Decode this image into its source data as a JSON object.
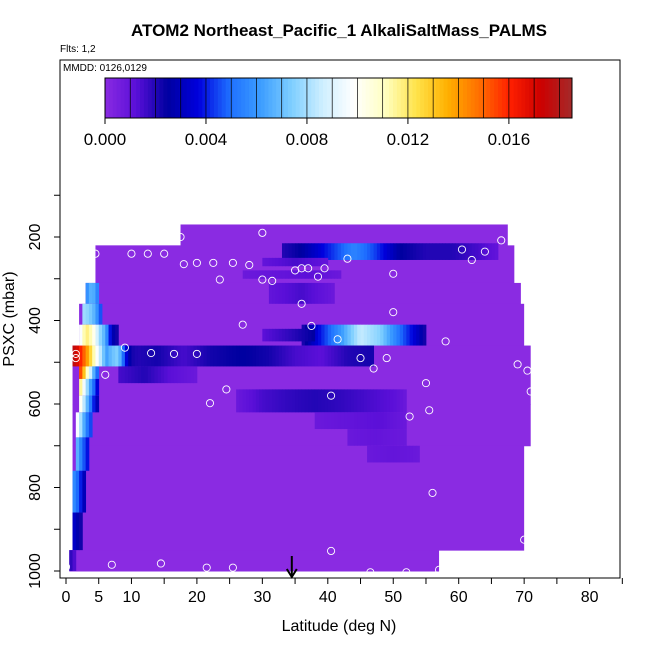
{
  "chart_data": {
    "type": "heatmap",
    "title": "ATOM2 Northeast_Pacific_1 AlkaliSaltMass_PALMS",
    "flights_label": "Flts: 1,2",
    "dates_label": "MMDD: 0126,0129",
    "xlabel": "Latitude (deg N)",
    "ylabel": "PSXC (mbar)",
    "xlim": [
      0,
      85
    ],
    "ylim": [
      1000,
      100
    ],
    "x_ticks": [
      0,
      5,
      10,
      20,
      30,
      40,
      50,
      60,
      70,
      80
    ],
    "y_ticks": [
      200,
      400,
      600,
      800,
      1000
    ],
    "marker_latitude": 34.5,
    "colorbar": {
      "min": 0.0,
      "max": 0.0185,
      "tick_values": [
        0.0,
        0.004,
        0.008,
        0.012,
        0.016
      ],
      "tick_labels": [
        "0.000",
        "0.004",
        "0.008",
        "0.012",
        "0.016"
      ],
      "colors": [
        "#8a2be2",
        "#5a0fd8",
        "#0000a0",
        "#0000dd",
        "#1e6fff",
        "#3c9dff",
        "#7fcfff",
        "#cfefff",
        "#ffffff",
        "#ffffc0",
        "#ffe34a",
        "#ffb000",
        "#ff7000",
        "#ff2000",
        "#cc0000",
        "#a52a2a"
      ]
    },
    "envelope": [
      {
        "p": [
          170,
          220
        ],
        "lat": [
          17.5,
          67.5
        ]
      },
      {
        "p": [
          220,
          310
        ],
        "lat": [
          4.5,
          68.5
        ]
      },
      {
        "p": [
          310,
          360
        ],
        "lat": [
          3.0,
          69.5
        ]
      },
      {
        "p": [
          360,
          460
        ],
        "lat": [
          2.0,
          70.0
        ]
      },
      {
        "p": [
          460,
          600
        ],
        "lat": [
          1.0,
          71.0
        ]
      },
      {
        "p": [
          600,
          700
        ],
        "lat": [
          1.0,
          71.0
        ]
      },
      {
        "p": [
          700,
          950
        ],
        "lat": [
          1.0,
          70.0
        ]
      },
      {
        "p": [
          950,
          1000
        ],
        "lat": [
          0.5,
          57.0
        ]
      }
    ],
    "features": [
      {
        "p": [
          215,
          255
        ],
        "lat": [
          33,
          66
        ],
        "values": [
          [
            33,
            0.002
          ],
          [
            36,
            0.0025
          ],
          [
            40,
            0.004
          ],
          [
            44,
            0.0055
          ],
          [
            47,
            0.0045
          ],
          [
            51,
            0.0025
          ],
          [
            55,
            0.002
          ],
          [
            59,
            0.002
          ],
          [
            63,
            0.0015
          ],
          [
            66,
            0.001
          ]
        ]
      },
      {
        "p": [
          250,
          270
        ],
        "lat": [
          30,
          40
        ],
        "values": [
          [
            30,
            0.001
          ],
          [
            35,
            0.0015
          ],
          [
            40,
            0.001
          ]
        ]
      },
      {
        "p": [
          280,
          300
        ],
        "lat": [
          27,
          42
        ],
        "values": [
          [
            27,
            0.0008
          ],
          [
            33,
            0.001
          ],
          [
            37,
            0.0012
          ],
          [
            42,
            0.0008
          ]
        ]
      },
      {
        "p": [
          310,
          360
        ],
        "lat": [
          31,
          41
        ],
        "values": [
          [
            31,
            0.001
          ],
          [
            36,
            0.0015
          ],
          [
            41,
            0.0008
          ]
        ]
      },
      {
        "p": [
          410,
          460
        ],
        "lat": [
          36,
          55
        ],
        "values": [
          [
            36,
            0.002
          ],
          [
            39,
            0.004
          ],
          [
            42,
            0.006
          ],
          [
            45,
            0.0085
          ],
          [
            48,
            0.0075
          ],
          [
            51,
            0.005
          ],
          [
            54,
            0.003
          ],
          [
            55,
            0.002
          ]
        ]
      },
      {
        "p": [
          420,
          450
        ],
        "lat": [
          30,
          38
        ],
        "values": [
          [
            30,
            0.0012
          ],
          [
            34,
            0.0018
          ],
          [
            38,
            0.0025
          ]
        ]
      },
      {
        "p": [
          460,
          510
        ],
        "lat": [
          1,
          6
        ],
        "values": [
          [
            1,
            0.018
          ],
          [
            2,
            0.0165
          ],
          [
            3,
            0.0145
          ],
          [
            4,
            0.012
          ],
          [
            5,
            0.009
          ],
          [
            6,
            0.0065
          ]
        ]
      },
      {
        "p": [
          460,
          510
        ],
        "lat": [
          6,
          11
        ],
        "values": [
          [
            6,
            0.006
          ],
          [
            7,
            0.007
          ],
          [
            8,
            0.0075
          ],
          [
            9,
            0.004
          ],
          [
            10,
            0.0022
          ],
          [
            11,
            0.002
          ]
        ]
      },
      {
        "p": [
          460,
          510
        ],
        "lat": [
          11,
          47
        ],
        "values": [
          [
            11,
            0.002
          ],
          [
            14,
            0.0022
          ],
          [
            18,
            0.0015
          ],
          [
            22,
            0.0022
          ],
          [
            27,
            0.0025
          ],
          [
            31,
            0.0022
          ],
          [
            35,
            0.0015
          ],
          [
            39,
            0.0012
          ],
          [
            43,
            0.002
          ],
          [
            47,
            0.0022
          ]
        ]
      },
      {
        "p": [
          510,
          550
        ],
        "lat": [
          8,
          20
        ],
        "values": [
          [
            8,
            0.0015
          ],
          [
            12,
            0.002
          ],
          [
            16,
            0.0012
          ],
          [
            20,
            0.0008
          ]
        ]
      },
      {
        "p": [
          565,
          620
        ],
        "lat": [
          26,
          52
        ],
        "values": [
          [
            26,
            0.0008
          ],
          [
            30,
            0.0015
          ],
          [
            34,
            0.0018
          ],
          [
            38,
            0.002
          ],
          [
            42,
            0.0018
          ],
          [
            46,
            0.0015
          ],
          [
            50,
            0.0012
          ],
          [
            52,
            0.0008
          ]
        ]
      },
      {
        "p": [
          620,
          660
        ],
        "lat": [
          38,
          52
        ],
        "values": [
          [
            38,
            0.0008
          ],
          [
            43,
            0.001
          ],
          [
            48,
            0.0012
          ],
          [
            52,
            0.0008
          ]
        ]
      },
      {
        "p": [
          660,
          700
        ],
        "lat": [
          43,
          52
        ],
        "values": [
          [
            43,
            0.0008
          ],
          [
            47,
            0.001
          ],
          [
            52,
            0.0008
          ]
        ]
      },
      {
        "p": [
          700,
          740
        ],
        "lat": [
          46,
          54
        ],
        "values": [
          [
            46,
            0.0008
          ],
          [
            50,
            0.001
          ],
          [
            54,
            0.0008
          ]
        ]
      },
      {
        "p": [
          510,
          540
        ],
        "lat": [
          2,
          5
        ],
        "values": [
          [
            2,
            0.0165
          ],
          [
            3,
            0.012
          ],
          [
            4,
            0.0075
          ],
          [
            5,
            0.004
          ]
        ]
      },
      {
        "p": [
          540,
          580
        ],
        "lat": [
          2,
          5
        ],
        "values": [
          [
            2,
            0.0125
          ],
          [
            3,
            0.0085
          ],
          [
            4,
            0.0055
          ],
          [
            5,
            0.003
          ]
        ]
      },
      {
        "p": [
          580,
          620
        ],
        "lat": [
          2,
          5
        ],
        "values": [
          [
            2,
            0.011
          ],
          [
            3,
            0.0075
          ],
          [
            4,
            0.0045
          ],
          [
            5,
            0.0025
          ]
        ]
      },
      {
        "p": [
          620,
          680
        ],
        "lat": [
          1.5,
          4
        ],
        "values": [
          [
            1.5,
            0.0105
          ],
          [
            2.5,
            0.0072
          ],
          [
            3.5,
            0.0045
          ]
        ]
      },
      {
        "p": [
          680,
          760
        ],
        "lat": [
          1.5,
          3.5
        ],
        "values": [
          [
            1.5,
            0.0072
          ],
          [
            2.5,
            0.005
          ],
          [
            3.5,
            0.0035
          ]
        ]
      },
      {
        "p": [
          760,
          860
        ],
        "lat": [
          1,
          3
        ],
        "values": [
          [
            1,
            0.006
          ],
          [
            2,
            0.0045
          ],
          [
            3,
            0.0025
          ]
        ]
      },
      {
        "p": [
          860,
          950
        ],
        "lat": [
          1,
          2.5
        ],
        "values": [
          [
            1,
            0.0035
          ],
          [
            2.5,
            0.002
          ]
        ]
      },
      {
        "p": [
          950,
          1000
        ],
        "lat": [
          0.5,
          1.5
        ],
        "values": [
          [
            0.5,
            0.002
          ],
          [
            1.5,
            0.0012
          ]
        ]
      },
      {
        "p": [
          310,
          360
        ],
        "lat": [
          3,
          5
        ],
        "values": [
          [
            3,
            0.0055
          ],
          [
            4,
            0.007
          ],
          [
            5,
            0.005
          ]
        ]
      },
      {
        "p": [
          360,
          410
        ],
        "lat": [
          2.5,
          5.5
        ],
        "values": [
          [
            2.5,
            0.008
          ],
          [
            3.5,
            0.0075
          ],
          [
            4.5,
            0.0065
          ],
          [
            5.5,
            0.004
          ]
        ]
      },
      {
        "p": [
          410,
          460
        ],
        "lat": [
          2,
          8
        ],
        "values": [
          [
            2,
            0.009
          ],
          [
            3,
            0.012
          ],
          [
            4,
            0.011
          ],
          [
            5,
            0.008
          ],
          [
            6,
            0.0065
          ],
          [
            7,
            0.003
          ],
          [
            8,
            0.002
          ]
        ]
      }
    ],
    "sample_points": [
      [
        0,
        990
      ],
      [
        7,
        985
      ],
      [
        14.5,
        982
      ],
      [
        21.5,
        992
      ],
      [
        25.5,
        992
      ],
      [
        40.5,
        952
      ],
      [
        46.5,
        1003
      ],
      [
        52,
        1003
      ],
      [
        57,
        997
      ],
      [
        4.5,
        240
      ],
      [
        10,
        240
      ],
      [
        12.5,
        240
      ],
      [
        15,
        240
      ],
      [
        17.5,
        200
      ],
      [
        18,
        265
      ],
      [
        20,
        262
      ],
      [
        22.5,
        262
      ],
      [
        23.5,
        302
      ],
      [
        25.5,
        262
      ],
      [
        28,
        267
      ],
      [
        30,
        190
      ],
      [
        30,
        302
      ],
      [
        31.5,
        305
      ],
      [
        35,
        280
      ],
      [
        36,
        275
      ],
      [
        37,
        275
      ],
      [
        38.5,
        295
      ],
      [
        39.5,
        275
      ],
      [
        43,
        252
      ],
      [
        50,
        288
      ],
      [
        60.5,
        230
      ],
      [
        62,
        255
      ],
      [
        64,
        235
      ],
      [
        66.5,
        208
      ],
      [
        36,
        360
      ],
      [
        37.5,
        413
      ],
      [
        27,
        410
      ],
      [
        41.5,
        445
      ],
      [
        50,
        380
      ],
      [
        58,
        450
      ],
      [
        1.5,
        480
      ],
      [
        1.5,
        490
      ],
      [
        9,
        465
      ],
      [
        13,
        478
      ],
      [
        16.5,
        480
      ],
      [
        20,
        480
      ],
      [
        45,
        490
      ],
      [
        49,
        490
      ],
      [
        47,
        515
      ],
      [
        6,
        530
      ],
      [
        24.5,
        565
      ],
      [
        22,
        598
      ],
      [
        40.5,
        580
      ],
      [
        52.5,
        630
      ],
      [
        55,
        550
      ],
      [
        55.5,
        615
      ],
      [
        56,
        813
      ],
      [
        69,
        505
      ],
      [
        70,
        925
      ],
      [
        70.5,
        520
      ],
      [
        71,
        570
      ]
    ]
  }
}
